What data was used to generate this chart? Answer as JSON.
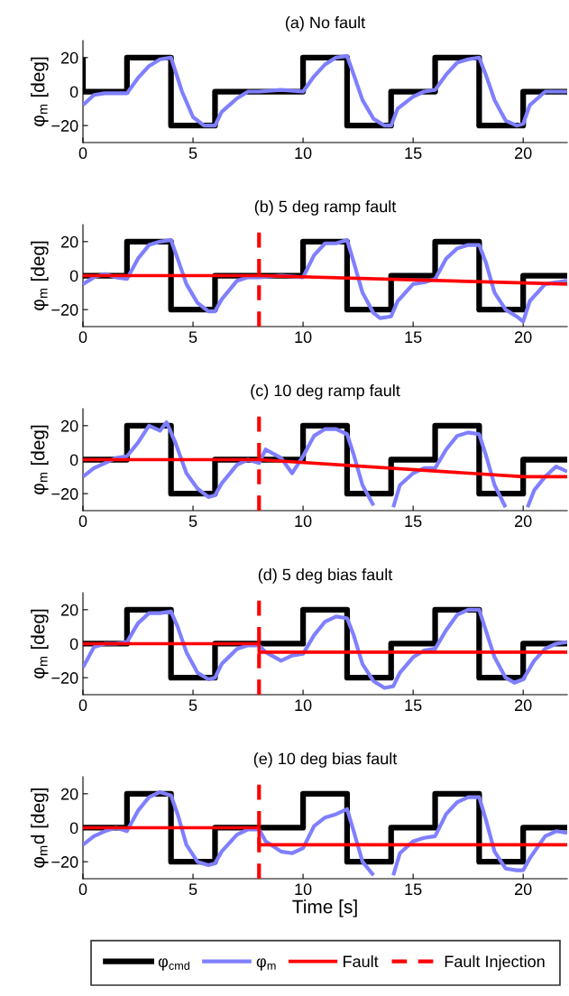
{
  "chart_data": [
    {
      "type": "line",
      "title": "(a) No fault",
      "ylabel": "φ$_{m}$ [deg]",
      "xlim": [
        0,
        22
      ],
      "ylim": [
        -30,
        30
      ],
      "xticks": [
        0,
        5,
        10,
        15,
        20
      ],
      "yticks": [
        -20,
        0,
        20
      ],
      "grid": false,
      "legend": false,
      "series": [
        {
          "type": "step",
          "color": "#000000",
          "x": [
            0,
            0,
            2,
            4,
            6,
            10,
            12,
            14,
            16,
            18,
            20,
            22
          ],
          "values": [
            20,
            0,
            20,
            -20,
            0,
            20,
            -20,
            0,
            20,
            -20,
            0,
            0
          ]
        },
        {
          "type": "line",
          "color": "#7f7fff",
          "x": [
            0,
            0.5,
            1,
            1.5,
            2,
            2.5,
            3,
            3.5,
            4,
            4.2,
            4.5,
            5,
            5.5,
            6,
            6.3,
            7,
            7.5,
            8,
            9,
            10,
            10.5,
            11,
            11.5,
            12,
            12.3,
            12.7,
            13.2,
            13.7,
            14,
            14.3,
            15,
            15.5,
            16,
            16.5,
            17,
            17.5,
            18,
            18.3,
            18.7,
            19.2,
            19.7,
            20,
            20.3,
            21,
            22
          ],
          "values": [
            -8,
            -2,
            -1,
            -1,
            -1,
            8,
            15,
            19,
            20,
            12,
            0,
            -15,
            -20,
            -20,
            -12,
            -4,
            0,
            0,
            1,
            0,
            9,
            16,
            20,
            21,
            10,
            -5,
            -16,
            -20,
            -20,
            -10,
            -3,
            0,
            1,
            10,
            17,
            19,
            20,
            10,
            -5,
            -17,
            -20,
            -19,
            -8,
            0,
            0
          ]
        }
      ]
    },
    {
      "type": "line",
      "title": "(b) 5 deg ramp fault",
      "ylabel": "φ$_{m}$ [deg]",
      "xlim": [
        0,
        22
      ],
      "ylim": [
        -30,
        30
      ],
      "xticks": [
        0,
        5,
        10,
        15,
        20
      ],
      "yticks": [
        -20,
        0,
        20
      ],
      "grid": false,
      "legend": false,
      "ref_lines": [
        {
          "axis": "x",
          "value": 8,
          "color": "#ff0000",
          "line_style": "dashed"
        }
      ],
      "series": [
        {
          "type": "step",
          "color": "#000000",
          "x": [
            0,
            2,
            4,
            6,
            10,
            12,
            14,
            16,
            18,
            20,
            22
          ],
          "values": [
            0,
            20,
            -20,
            0,
            20,
            -20,
            0,
            20,
            -20,
            0,
            0
          ]
        },
        {
          "type": "line",
          "color": "#7f7fff",
          "x": [
            0,
            0.5,
            1,
            1.5,
            2,
            2.5,
            3,
            3.5,
            4,
            4.3,
            4.7,
            5.2,
            5.7,
            6,
            6.3,
            7,
            7.5,
            8,
            9,
            10,
            10.5,
            11,
            11.5,
            12,
            12.3,
            12.7,
            13.2,
            13.5,
            14,
            14.3,
            15,
            15.5,
            16,
            16.5,
            17,
            17.5,
            18,
            18.3,
            18.7,
            19.2,
            19.7,
            20,
            20.3,
            21,
            22
          ],
          "values": [
            -5,
            -1,
            1,
            -1,
            -2,
            10,
            18,
            20,
            21,
            10,
            -5,
            -16,
            -21,
            -21,
            -14,
            -3,
            -1,
            -1,
            0,
            -1,
            12,
            19,
            19,
            21,
            8,
            -10,
            -22,
            -25,
            -24,
            -15,
            -5,
            -4,
            -2,
            10,
            16,
            18,
            18,
            8,
            -10,
            -20,
            -24,
            -27,
            -15,
            -5,
            -3
          ]
        },
        {
          "type": "line",
          "color": "#ff0000",
          "x": [
            0,
            8,
            22
          ],
          "values": [
            0,
            0,
            -5
          ]
        }
      ]
    },
    {
      "type": "line",
      "title": "(c) 10 deg ramp fault",
      "ylabel": "φ$_{m}$ [deg]",
      "xlim": [
        0,
        22
      ],
      "ylim": [
        -30,
        30
      ],
      "xticks": [
        0,
        5,
        10,
        15,
        20
      ],
      "yticks": [
        -20,
        0,
        20
      ],
      "grid": false,
      "legend": false,
      "ref_lines": [
        {
          "axis": "x",
          "value": 8,
          "color": "#ff0000",
          "line_style": "dashed"
        }
      ],
      "series": [
        {
          "type": "step",
          "color": "#000000",
          "x": [
            0,
            2,
            4,
            6,
            10,
            12,
            14,
            16,
            18,
            20,
            22
          ],
          "values": [
            0,
            20,
            -20,
            0,
            20,
            -20,
            0,
            20,
            -20,
            0,
            0
          ]
        },
        {
          "type": "line",
          "color": "#7f7fff",
          "x": [
            0,
            0.5,
            1,
            1.5,
            2,
            2.5,
            3,
            3.5,
            3.8,
            4.2,
            4.7,
            5.2,
            5.7,
            6,
            6.3,
            7,
            7.5,
            8,
            8.3,
            9,
            9.5,
            10,
            10.5,
            11,
            11.5,
            12,
            12.3,
            12.7,
            13.2,
            13.7,
            14.1,
            14.4,
            15,
            15.5,
            16,
            16.5,
            17,
            17.5,
            18,
            18.3,
            18.7,
            19.2,
            19.7,
            20.2,
            20.5,
            21,
            21.5,
            22
          ],
          "values": [
            -10,
            -5,
            -2,
            1,
            2,
            10,
            20,
            17,
            22,
            10,
            -8,
            -17,
            -22,
            -21,
            -14,
            -3,
            0,
            -2,
            6,
            1,
            -8,
            2,
            14,
            18,
            18,
            15,
            3,
            -15,
            -27,
            null,
            -28,
            -15,
            -8,
            -5,
            -5,
            6,
            14,
            16,
            15,
            3,
            -15,
            -28,
            null,
            -28,
            -18,
            -10,
            -4,
            -7
          ]
        },
        {
          "type": "line",
          "color": "#ff0000",
          "x": [
            0,
            8,
            20,
            22
          ],
          "values": [
            0,
            0,
            -10,
            -10
          ]
        }
      ]
    },
    {
      "type": "line",
      "title": "(d) 5 deg bias fault",
      "ylabel": "φ$_{m}$ [deg]",
      "xlim": [
        0,
        22
      ],
      "ylim": [
        -30,
        30
      ],
      "xticks": [
        0,
        5,
        10,
        15,
        20
      ],
      "yticks": [
        -20,
        0,
        20
      ],
      "grid": false,
      "legend": false,
      "ref_lines": [
        {
          "axis": "x",
          "value": 8,
          "color": "#ff0000",
          "line_style": "dashed"
        }
      ],
      "series": [
        {
          "type": "step",
          "color": "#000000",
          "x": [
            0,
            2,
            4,
            6,
            10,
            12,
            14,
            16,
            18,
            20,
            22
          ],
          "values": [
            0,
            20,
            -20,
            0,
            20,
            -20,
            0,
            20,
            -20,
            0,
            0
          ]
        },
        {
          "type": "line",
          "color": "#7f7fff",
          "x": [
            0,
            0.5,
            1,
            1.5,
            2,
            2.5,
            3,
            3.5,
            4,
            4.3,
            4.7,
            5.2,
            5.7,
            6,
            6.3,
            7,
            7.5,
            8,
            8.3,
            9,
            9.5,
            10,
            10.5,
            11,
            11.5,
            12,
            12.3,
            12.7,
            13.2,
            13.7,
            14.1,
            14.4,
            15,
            15.5,
            16,
            16.5,
            17,
            17.5,
            18,
            18.3,
            18.7,
            19.2,
            19.6,
            20,
            20.5,
            21,
            21.5,
            22
          ],
          "values": [
            -14,
            -2,
            0,
            0,
            1,
            12,
            18,
            18,
            19,
            10,
            -5,
            -17,
            -21,
            -20,
            -12,
            -3,
            -1,
            -1,
            -5,
            -10,
            -7,
            -6,
            5,
            13,
            16,
            15,
            5,
            -12,
            -22,
            -26,
            -25,
            -17,
            -8,
            -4,
            -3,
            8,
            17,
            20,
            20,
            8,
            -8,
            -20,
            -23,
            -21,
            -10,
            -3,
            0,
            1
          ]
        },
        {
          "type": "line",
          "color": "#ff0000",
          "x": [
            0,
            8,
            8,
            22
          ],
          "values": [
            0,
            0,
            -5,
            -5
          ]
        }
      ]
    },
    {
      "type": "line",
      "title": "(e) 10 deg bias fault",
      "xlabel": "Time [s]",
      "ylabel": "φ$_{m}$d [deg]",
      "xlim": [
        0,
        22
      ],
      "ylim": [
        -30,
        30
      ],
      "xticks": [
        0,
        5,
        10,
        15,
        20
      ],
      "yticks": [
        -20,
        0,
        20
      ],
      "grid": false,
      "legend": "bottom",
      "ref_lines": [
        {
          "axis": "x",
          "value": 8,
          "label": "Fault Injection",
          "color": "#ff0000",
          "line_style": "dashed"
        }
      ],
      "series": [
        {
          "type": "step",
          "name": "φ$_{cmd}$",
          "color": "#000000",
          "x": [
            0,
            2,
            4,
            6,
            10,
            12,
            14,
            16,
            18,
            20,
            22
          ],
          "values": [
            0,
            20,
            -20,
            0,
            20,
            -20,
            0,
            20,
            -20,
            0,
            0
          ]
        },
        {
          "type": "line",
          "name": "φ$_{m}$",
          "color": "#7f7fff",
          "x": [
            0,
            0.5,
            1,
            1.5,
            2,
            2.5,
            3,
            3.5,
            4,
            4.3,
            4.7,
            5.2,
            5.7,
            6,
            6.3,
            7,
            7.5,
            8,
            8.3,
            9,
            9.5,
            10,
            10.5,
            11,
            11.5,
            12,
            12.3,
            12.7,
            13.2,
            13.7,
            14.1,
            14.4,
            15,
            15.5,
            16,
            16.5,
            17,
            17.5,
            18,
            18.3,
            18.7,
            19.2,
            19.7,
            20,
            20.3,
            21,
            21.5,
            22
          ],
          "values": [
            -10,
            -5,
            -2,
            0,
            -2,
            10,
            18,
            21,
            19,
            8,
            -10,
            -20,
            -22,
            -21,
            -14,
            -4,
            -1,
            -1,
            -8,
            -14,
            -15,
            -12,
            1,
            6,
            8,
            11,
            -2,
            -20,
            -28,
            null,
            -28,
            -15,
            -8,
            -6,
            -5,
            8,
            15,
            18,
            18,
            5,
            -14,
            -24,
            -25,
            -25,
            -18,
            -5,
            -2,
            -3
          ]
        },
        {
          "type": "line",
          "name": "Fault",
          "color": "#ff0000",
          "x": [
            0,
            8,
            8,
            22
          ],
          "values": [
            0,
            0,
            -10,
            -10
          ]
        }
      ]
    }
  ]
}
